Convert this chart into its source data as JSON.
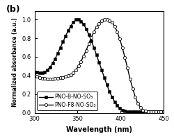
{
  "title_label": "(b)",
  "xlabel": "Wavelength (nm)",
  "ylabel": "Normalized absorbance (a.u.)",
  "xlim": [
    300,
    450
  ],
  "ylim": [
    0.0,
    1.09
  ],
  "yticks": [
    0.0,
    0.2,
    0.4,
    0.6,
    0.8,
    1.0
  ],
  "xticks": [
    300,
    350,
    400,
    450
  ],
  "series1_label": "PNO-B-NO-SO₃",
  "series2_label": "PNO-F8-NO-SO₃",
  "series1_x": [
    300,
    303,
    306,
    309,
    312,
    315,
    318,
    321,
    324,
    327,
    330,
    333,
    336,
    339,
    342,
    345,
    348,
    351,
    354,
    357,
    360,
    363,
    366,
    369,
    372,
    375,
    378,
    381,
    384,
    387,
    390,
    393,
    396,
    399,
    402,
    405,
    408,
    411,
    414,
    417,
    420,
    423,
    426,
    429,
    432,
    435,
    438,
    441,
    444,
    447,
    450
  ],
  "series1_y": [
    0.44,
    0.44,
    0.43,
    0.43,
    0.44,
    0.46,
    0.49,
    0.53,
    0.58,
    0.64,
    0.7,
    0.76,
    0.82,
    0.88,
    0.93,
    0.97,
    1.0,
    1.0,
    0.98,
    0.95,
    0.9,
    0.84,
    0.77,
    0.7,
    0.62,
    0.54,
    0.46,
    0.38,
    0.3,
    0.23,
    0.17,
    0.12,
    0.08,
    0.05,
    0.03,
    0.02,
    0.01,
    0.01,
    0.01,
    0.01,
    0.01,
    0.01,
    0.01,
    0.01,
    0.01,
    0.01,
    0.01,
    0.01,
    0.01,
    0.01,
    0.01
  ],
  "series2_x": [
    300,
    303,
    306,
    309,
    312,
    315,
    318,
    321,
    324,
    327,
    330,
    333,
    336,
    339,
    342,
    345,
    348,
    351,
    354,
    357,
    360,
    363,
    366,
    369,
    372,
    375,
    378,
    381,
    384,
    387,
    390,
    393,
    396,
    399,
    402,
    405,
    408,
    411,
    414,
    417,
    420,
    423,
    426,
    429,
    432,
    435,
    438,
    441,
    444,
    447,
    450
  ],
  "series2_y": [
    0.4,
    0.39,
    0.38,
    0.37,
    0.37,
    0.36,
    0.36,
    0.36,
    0.37,
    0.37,
    0.38,
    0.38,
    0.39,
    0.4,
    0.41,
    0.43,
    0.46,
    0.5,
    0.55,
    0.61,
    0.67,
    0.74,
    0.81,
    0.87,
    0.92,
    0.96,
    0.99,
    1.0,
    1.0,
    0.99,
    0.97,
    0.93,
    0.87,
    0.79,
    0.7,
    0.59,
    0.48,
    0.36,
    0.26,
    0.17,
    0.1,
    0.06,
    0.03,
    0.02,
    0.01,
    0.01,
    0.01,
    0.01,
    0.01,
    0.01,
    0.01
  ],
  "background_color": "#ffffff",
  "line_color": "#000000",
  "marker_size": 3.0,
  "linewidth": 1.0
}
